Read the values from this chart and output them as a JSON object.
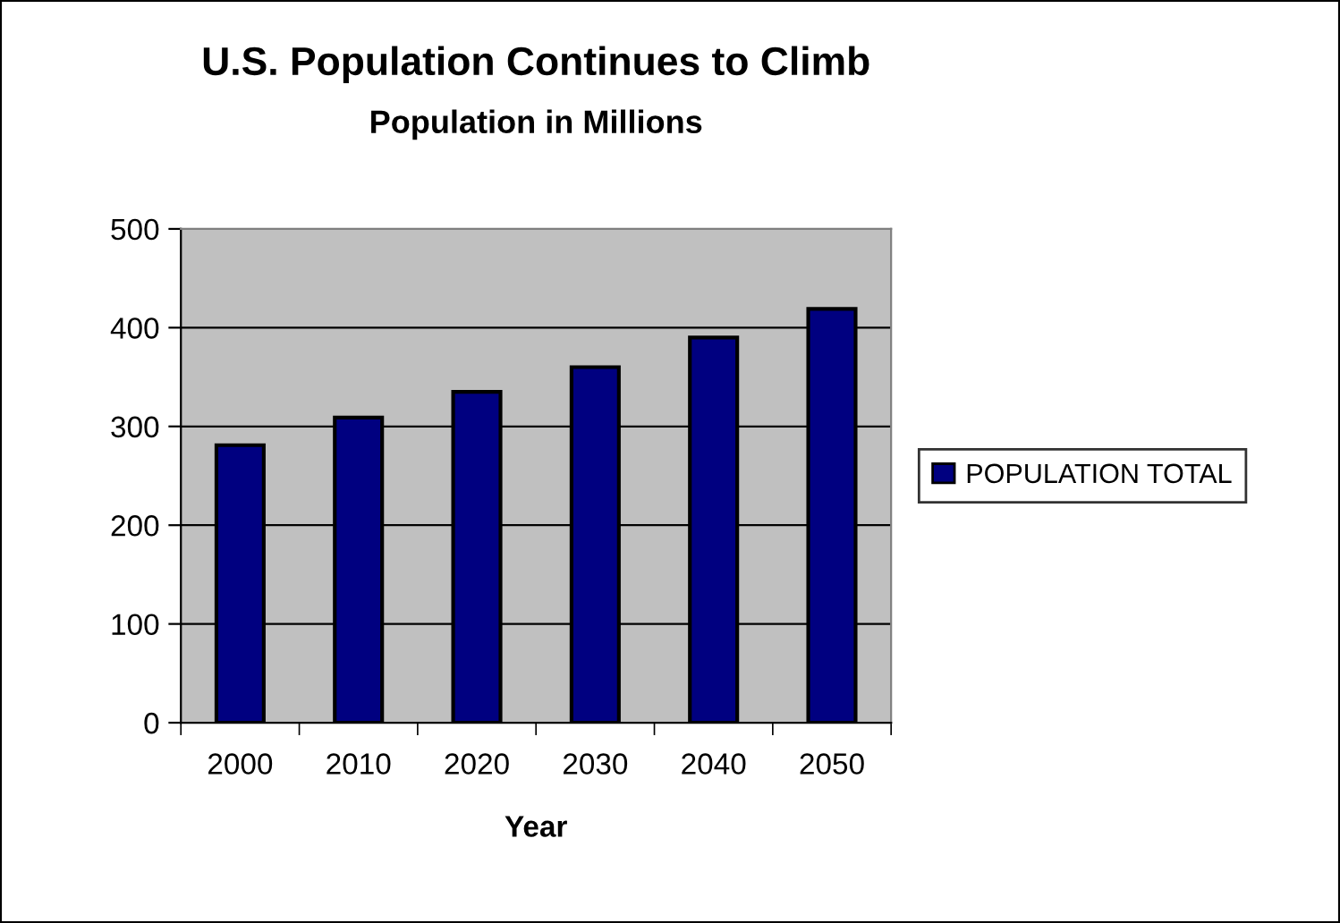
{
  "chart_data": {
    "type": "bar",
    "title": "U.S. Population Continues to Climb",
    "subtitle": "Population in Millions",
    "xlabel": "Year",
    "categories": [
      "2000",
      "2010",
      "2020",
      "2030",
      "2040",
      "2050"
    ],
    "series": [
      {
        "name": "POPULATION TOTAL",
        "color": "#000080",
        "values": [
          281,
          309,
          335,
          360,
          390,
          419
        ]
      }
    ],
    "ylim": [
      0,
      500
    ],
    "yticks": [
      0,
      100,
      200,
      300,
      400,
      500
    ],
    "grid": "y",
    "legend": "right"
  }
}
